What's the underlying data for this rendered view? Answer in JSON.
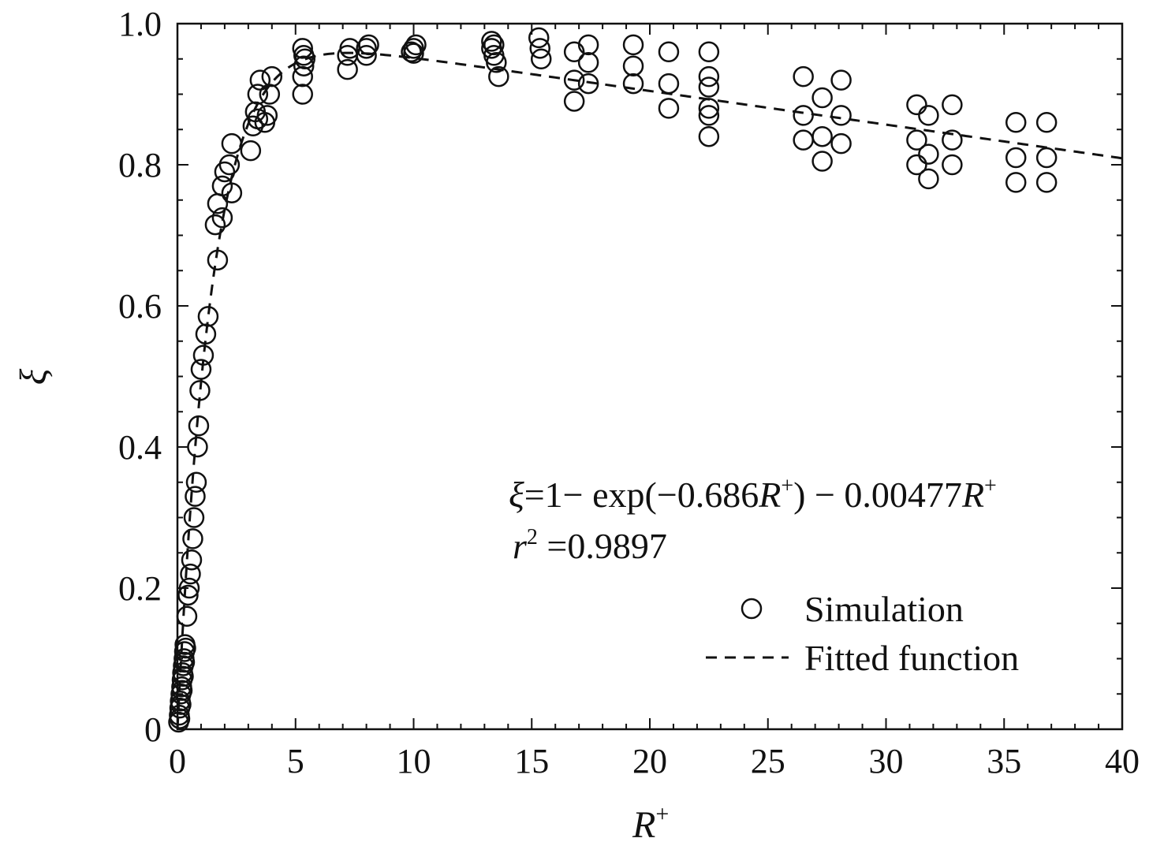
{
  "chart_data": {
    "type": "scatter",
    "xlabel": "R",
    "xlabel_sup": "+",
    "ylabel": "ξ",
    "xlim": [
      0,
      40
    ],
    "ylim": [
      0,
      1.0
    ],
    "x_ticks": [
      0,
      5,
      10,
      15,
      20,
      25,
      30,
      35,
      40
    ],
    "x_tick_labels": [
      "0",
      "5",
      "10",
      "15",
      "20",
      "25",
      "30",
      "35",
      "40"
    ],
    "y_ticks": [
      0,
      0.2,
      0.4,
      0.6,
      0.8,
      1.0
    ],
    "y_tick_labels": [
      "0",
      "0.2",
      "0.4",
      "0.6",
      "0.8",
      "1.0"
    ],
    "grid": false,
    "legend_position": "bottom-right",
    "annotation": {
      "equation": {
        "xi": "ξ",
        "p1": "=1− exp(−0.686",
        "R1": "R",
        "sup1": "+",
        "p2": ") − 0.00477",
        "R2": "R",
        "sup2": "+"
      },
      "r2": {
        "r": "r",
        "sup": "2",
        "rest": " =0.9897"
      }
    },
    "series": [
      {
        "name": "Simulation",
        "marker": "circle-open",
        "points": [
          [
            0.05,
            0.01
          ],
          [
            0.08,
            0.02
          ],
          [
            0.1,
            0.03
          ],
          [
            0.12,
            0.04
          ],
          [
            0.15,
            0.05
          ],
          [
            0.18,
            0.06
          ],
          [
            0.2,
            0.07
          ],
          [
            0.22,
            0.08
          ],
          [
            0.25,
            0.09
          ],
          [
            0.28,
            0.1
          ],
          [
            0.3,
            0.11
          ],
          [
            0.32,
            0.12
          ],
          [
            0.1,
            0.015
          ],
          [
            0.15,
            0.035
          ],
          [
            0.2,
            0.055
          ],
          [
            0.25,
            0.075
          ],
          [
            0.3,
            0.095
          ],
          [
            0.35,
            0.115
          ],
          [
            0.4,
            0.16
          ],
          [
            0.45,
            0.19
          ],
          [
            0.5,
            0.2
          ],
          [
            0.55,
            0.22
          ],
          [
            0.6,
            0.24
          ],
          [
            0.65,
            0.27
          ],
          [
            0.7,
            0.3
          ],
          [
            0.75,
            0.33
          ],
          [
            0.8,
            0.35
          ],
          [
            0.85,
            0.4
          ],
          [
            0.9,
            0.43
          ],
          [
            0.95,
            0.48
          ],
          [
            1.0,
            0.51
          ],
          [
            1.1,
            0.53
          ],
          [
            1.2,
            0.56
          ],
          [
            1.3,
            0.585
          ],
          [
            1.7,
            0.665
          ],
          [
            1.6,
            0.715
          ],
          [
            1.7,
            0.745
          ],
          [
            1.9,
            0.725
          ],
          [
            1.9,
            0.77
          ],
          [
            2.0,
            0.79
          ],
          [
            2.2,
            0.8
          ],
          [
            2.3,
            0.83
          ],
          [
            2.3,
            0.76
          ],
          [
            3.1,
            0.82
          ],
          [
            3.2,
            0.855
          ],
          [
            3.3,
            0.875
          ],
          [
            3.4,
            0.9
          ],
          [
            3.5,
            0.92
          ],
          [
            3.7,
            0.86
          ],
          [
            3.8,
            0.87
          ],
          [
            3.9,
            0.9
          ],
          [
            4.0,
            0.925
          ],
          [
            3.4,
            0.865
          ],
          [
            5.3,
            0.9
          ],
          [
            5.3,
            0.925
          ],
          [
            5.35,
            0.94
          ],
          [
            5.35,
            0.955
          ],
          [
            5.3,
            0.965
          ],
          [
            5.4,
            0.95
          ],
          [
            7.2,
            0.935
          ],
          [
            7.2,
            0.955
          ],
          [
            7.3,
            0.965
          ],
          [
            8.0,
            0.955
          ],
          [
            8.0,
            0.965
          ],
          [
            8.1,
            0.97
          ],
          [
            9.9,
            0.96
          ],
          [
            10.0,
            0.965
          ],
          [
            10.1,
            0.97
          ],
          [
            10.0,
            0.958
          ],
          [
            13.3,
            0.975
          ],
          [
            13.3,
            0.965
          ],
          [
            13.4,
            0.955
          ],
          [
            13.5,
            0.945
          ],
          [
            13.6,
            0.925
          ],
          [
            13.4,
            0.97
          ],
          [
            15.3,
            0.98
          ],
          [
            15.35,
            0.965
          ],
          [
            15.4,
            0.95
          ],
          [
            16.8,
            0.96
          ],
          [
            16.8,
            0.92
          ],
          [
            16.8,
            0.89
          ],
          [
            17.4,
            0.97
          ],
          [
            17.4,
            0.945
          ],
          [
            17.4,
            0.915
          ],
          [
            19.3,
            0.97
          ],
          [
            19.3,
            0.94
          ],
          [
            19.3,
            0.915
          ],
          [
            20.8,
            0.96
          ],
          [
            20.8,
            0.915
          ],
          [
            20.8,
            0.88
          ],
          [
            22.5,
            0.96
          ],
          [
            22.5,
            0.925
          ],
          [
            22.5,
            0.91
          ],
          [
            22.5,
            0.88
          ],
          [
            22.5,
            0.87
          ],
          [
            22.5,
            0.84
          ],
          [
            26.5,
            0.925
          ],
          [
            26.5,
            0.87
          ],
          [
            26.5,
            0.835
          ],
          [
            27.3,
            0.895
          ],
          [
            27.3,
            0.84
          ],
          [
            27.3,
            0.805
          ],
          [
            28.1,
            0.92
          ],
          [
            28.1,
            0.87
          ],
          [
            28.1,
            0.83
          ],
          [
            31.3,
            0.885
          ],
          [
            31.3,
            0.835
          ],
          [
            31.3,
            0.8
          ],
          [
            31.8,
            0.87
          ],
          [
            31.8,
            0.815
          ],
          [
            31.8,
            0.78
          ],
          [
            32.8,
            0.885
          ],
          [
            32.8,
            0.835
          ],
          [
            32.8,
            0.8
          ],
          [
            35.5,
            0.86
          ],
          [
            35.5,
            0.81
          ],
          [
            35.5,
            0.775
          ],
          [
            36.8,
            0.86
          ],
          [
            36.8,
            0.81
          ],
          [
            36.8,
            0.775
          ]
        ]
      },
      {
        "name": "Fitted function",
        "line_style": "dashed",
        "fit": {
          "a": 0.686,
          "b": 0.00477,
          "x_from": 0,
          "x_to": 40
        }
      }
    ]
  }
}
